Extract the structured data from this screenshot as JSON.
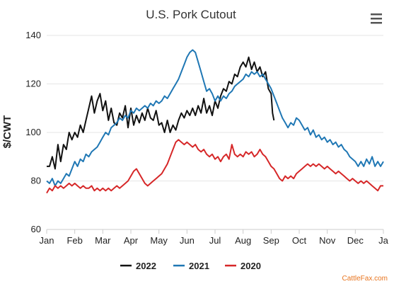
{
  "chart_data": {
    "type": "line",
    "title": "U.S. Pork Cutout",
    "xlabel": "",
    "ylabel": "$/CWT",
    "ylim": [
      60,
      140
    ],
    "yticks": [
      60,
      80,
      100,
      120,
      140
    ],
    "xticks": [
      "Jan",
      "Feb",
      "Mar",
      "Apr",
      "May",
      "Jun",
      "Jul",
      "Aug",
      "Sep",
      "Oct",
      "Nov",
      "Dec",
      "Ja"
    ],
    "x_unit": "month (0 = Jan 1, 12 = next Jan 1)",
    "grid": "horizontal",
    "legend_position": "bottom",
    "credits": "CattleFax.com",
    "series": [
      {
        "name": "2022",
        "color": "#111111",
        "points": [
          [
            0.0,
            86
          ],
          [
            0.1,
            86
          ],
          [
            0.2,
            90
          ],
          [
            0.3,
            85
          ],
          [
            0.4,
            95
          ],
          [
            0.5,
            88
          ],
          [
            0.6,
            95
          ],
          [
            0.7,
            93
          ],
          [
            0.8,
            100
          ],
          [
            0.9,
            97
          ],
          [
            1.0,
            100
          ],
          [
            1.1,
            98
          ],
          [
            1.2,
            103
          ],
          [
            1.3,
            100
          ],
          [
            1.4,
            105
          ],
          [
            1.5,
            110
          ],
          [
            1.6,
            115
          ],
          [
            1.7,
            108
          ],
          [
            1.8,
            113
          ],
          [
            1.9,
            116
          ],
          [
            2.0,
            109
          ],
          [
            2.1,
            113
          ],
          [
            2.2,
            105
          ],
          [
            2.3,
            110
          ],
          [
            2.4,
            104
          ],
          [
            2.5,
            103
          ],
          [
            2.6,
            108
          ],
          [
            2.7,
            106
          ],
          [
            2.8,
            111
          ],
          [
            2.9,
            102
          ],
          [
            3.0,
            110
          ],
          [
            3.1,
            103
          ],
          [
            3.2,
            107
          ],
          [
            3.3,
            104
          ],
          [
            3.4,
            108
          ],
          [
            3.5,
            105
          ],
          [
            3.6,
            110
          ],
          [
            3.7,
            106
          ],
          [
            3.8,
            105
          ],
          [
            3.9,
            109
          ],
          [
            4.0,
            103
          ],
          [
            4.1,
            104
          ],
          [
            4.2,
            100
          ],
          [
            4.3,
            105
          ],
          [
            4.4,
            100
          ],
          [
            4.5,
            103
          ],
          [
            4.6,
            101
          ],
          [
            4.7,
            105
          ],
          [
            4.8,
            108
          ],
          [
            4.9,
            106
          ],
          [
            5.0,
            109
          ],
          [
            5.1,
            107
          ],
          [
            5.2,
            110
          ],
          [
            5.3,
            107
          ],
          [
            5.4,
            111
          ],
          [
            5.5,
            108
          ],
          [
            5.6,
            114
          ],
          [
            5.7,
            108
          ],
          [
            5.8,
            111
          ],
          [
            5.9,
            107
          ],
          [
            6.0,
            113
          ],
          [
            6.1,
            110
          ],
          [
            6.2,
            115
          ],
          [
            6.3,
            118
          ],
          [
            6.4,
            117
          ],
          [
            6.5,
            121
          ],
          [
            6.6,
            120
          ],
          [
            6.7,
            124
          ],
          [
            6.8,
            123
          ],
          [
            6.9,
            127
          ],
          [
            7.0,
            129
          ],
          [
            7.1,
            127
          ],
          [
            7.2,
            131
          ],
          [
            7.3,
            126
          ],
          [
            7.4,
            129
          ],
          [
            7.5,
            125
          ],
          [
            7.6,
            127
          ],
          [
            7.7,
            123
          ],
          [
            7.8,
            125
          ],
          [
            7.9,
            118
          ],
          [
            8.0,
            116
          ],
          [
            8.05,
            108
          ],
          [
            8.1,
            105
          ]
        ]
      },
      {
        "name": "2021",
        "color": "#1f77b4",
        "points": [
          [
            0.0,
            80
          ],
          [
            0.1,
            79
          ],
          [
            0.2,
            81
          ],
          [
            0.3,
            78
          ],
          [
            0.4,
            80
          ],
          [
            0.5,
            79
          ],
          [
            0.6,
            81
          ],
          [
            0.7,
            83
          ],
          [
            0.8,
            82
          ],
          [
            0.9,
            85
          ],
          [
            1.0,
            88
          ],
          [
            1.1,
            86
          ],
          [
            1.2,
            89
          ],
          [
            1.3,
            88
          ],
          [
            1.4,
            91
          ],
          [
            1.5,
            90
          ],
          [
            1.6,
            92
          ],
          [
            1.7,
            93
          ],
          [
            1.8,
            94
          ],
          [
            1.9,
            96
          ],
          [
            2.0,
            98
          ],
          [
            2.1,
            100
          ],
          [
            2.2,
            99
          ],
          [
            2.3,
            102
          ],
          [
            2.4,
            103
          ],
          [
            2.5,
            104
          ],
          [
            2.6,
            106
          ],
          [
            2.7,
            105
          ],
          [
            2.8,
            107
          ],
          [
            2.9,
            106
          ],
          [
            3.0,
            109
          ],
          [
            3.1,
            108
          ],
          [
            3.2,
            110
          ],
          [
            3.3,
            109
          ],
          [
            3.4,
            110
          ],
          [
            3.5,
            111
          ],
          [
            3.6,
            110
          ],
          [
            3.7,
            112
          ],
          [
            3.8,
            111
          ],
          [
            3.9,
            113
          ],
          [
            4.0,
            112
          ],
          [
            4.1,
            113
          ],
          [
            4.2,
            115
          ],
          [
            4.3,
            114
          ],
          [
            4.4,
            116
          ],
          [
            4.5,
            118
          ],
          [
            4.6,
            120
          ],
          [
            4.7,
            122
          ],
          [
            4.8,
            125
          ],
          [
            4.9,
            128
          ],
          [
            5.0,
            131
          ],
          [
            5.1,
            133
          ],
          [
            5.2,
            134
          ],
          [
            5.3,
            133
          ],
          [
            5.4,
            129
          ],
          [
            5.5,
            125
          ],
          [
            5.6,
            121
          ],
          [
            5.7,
            117
          ],
          [
            5.8,
            118
          ],
          [
            5.9,
            116
          ],
          [
            6.0,
            113
          ],
          [
            6.1,
            115
          ],
          [
            6.2,
            113
          ],
          [
            6.3,
            115
          ],
          [
            6.4,
            114
          ],
          [
            6.5,
            116
          ],
          [
            6.6,
            117
          ],
          [
            6.7,
            119
          ],
          [
            6.8,
            120
          ],
          [
            6.9,
            121
          ],
          [
            7.0,
            122
          ],
          [
            7.1,
            124
          ],
          [
            7.2,
            123
          ],
          [
            7.3,
            125
          ],
          [
            7.4,
            124
          ],
          [
            7.5,
            125
          ],
          [
            7.6,
            123
          ],
          [
            7.7,
            124
          ],
          [
            7.8,
            122
          ],
          [
            7.9,
            120
          ],
          [
            8.0,
            118
          ],
          [
            8.1,
            115
          ],
          [
            8.2,
            112
          ],
          [
            8.3,
            109
          ],
          [
            8.4,
            106
          ],
          [
            8.5,
            104
          ],
          [
            8.6,
            102
          ],
          [
            8.7,
            104
          ],
          [
            8.8,
            103
          ],
          [
            8.9,
            106
          ],
          [
            9.0,
            105
          ],
          [
            9.1,
            103
          ],
          [
            9.2,
            101
          ],
          [
            9.3,
            102
          ],
          [
            9.4,
            99
          ],
          [
            9.5,
            101
          ],
          [
            9.6,
            98
          ],
          [
            9.7,
            99
          ],
          [
            9.8,
            97
          ],
          [
            9.9,
            98
          ],
          [
            10.0,
            96
          ],
          [
            10.1,
            97
          ],
          [
            10.2,
            95
          ],
          [
            10.3,
            96
          ],
          [
            10.4,
            94
          ],
          [
            10.5,
            95
          ],
          [
            10.6,
            93
          ],
          [
            10.7,
            92
          ],
          [
            10.8,
            90
          ],
          [
            10.9,
            89
          ],
          [
            11.0,
            88
          ],
          [
            11.1,
            86
          ],
          [
            11.2,
            88
          ],
          [
            11.3,
            86
          ],
          [
            11.4,
            89
          ],
          [
            11.5,
            87
          ],
          [
            11.6,
            90
          ],
          [
            11.7,
            86
          ],
          [
            11.8,
            88
          ],
          [
            11.9,
            86
          ],
          [
            12.0,
            88
          ]
        ]
      },
      {
        "name": "2020",
        "color": "#d62728",
        "points": [
          [
            0.0,
            75
          ],
          [
            0.1,
            77
          ],
          [
            0.2,
            76
          ],
          [
            0.3,
            78
          ],
          [
            0.4,
            77
          ],
          [
            0.5,
            78
          ],
          [
            0.6,
            77
          ],
          [
            0.7,
            78
          ],
          [
            0.8,
            79
          ],
          [
            0.9,
            78
          ],
          [
            1.0,
            79
          ],
          [
            1.1,
            78
          ],
          [
            1.2,
            77
          ],
          [
            1.3,
            78
          ],
          [
            1.4,
            77
          ],
          [
            1.5,
            77
          ],
          [
            1.6,
            78
          ],
          [
            1.7,
            76
          ],
          [
            1.8,
            77
          ],
          [
            1.9,
            76
          ],
          [
            2.0,
            77
          ],
          [
            2.1,
            76
          ],
          [
            2.2,
            77
          ],
          [
            2.3,
            76
          ],
          [
            2.4,
            77
          ],
          [
            2.5,
            78
          ],
          [
            2.6,
            77
          ],
          [
            2.7,
            78
          ],
          [
            2.8,
            79
          ],
          [
            2.9,
            80
          ],
          [
            3.0,
            82
          ],
          [
            3.1,
            84
          ],
          [
            3.2,
            85
          ],
          [
            3.3,
            83
          ],
          [
            3.4,
            81
          ],
          [
            3.5,
            79
          ],
          [
            3.6,
            78
          ],
          [
            3.7,
            79
          ],
          [
            3.8,
            80
          ],
          [
            3.9,
            81
          ],
          [
            4.0,
            82
          ],
          [
            4.1,
            83
          ],
          [
            4.2,
            85
          ],
          [
            4.3,
            87
          ],
          [
            4.4,
            90
          ],
          [
            4.5,
            93
          ],
          [
            4.6,
            96
          ],
          [
            4.7,
            97
          ],
          [
            4.8,
            96
          ],
          [
            4.9,
            95
          ],
          [
            5.0,
            96
          ],
          [
            5.1,
            95
          ],
          [
            5.2,
            94
          ],
          [
            5.3,
            95
          ],
          [
            5.4,
            93
          ],
          [
            5.5,
            92
          ],
          [
            5.6,
            93
          ],
          [
            5.7,
            91
          ],
          [
            5.8,
            90
          ],
          [
            5.9,
            91
          ],
          [
            6.0,
            89
          ],
          [
            6.1,
            90
          ],
          [
            6.2,
            88
          ],
          [
            6.3,
            90
          ],
          [
            6.4,
            91
          ],
          [
            6.5,
            89
          ],
          [
            6.6,
            95
          ],
          [
            6.7,
            91
          ],
          [
            6.8,
            90
          ],
          [
            6.9,
            91
          ],
          [
            7.0,
            90
          ],
          [
            7.1,
            92
          ],
          [
            7.2,
            91
          ],
          [
            7.3,
            92
          ],
          [
            7.4,
            90
          ],
          [
            7.5,
            91
          ],
          [
            7.6,
            93
          ],
          [
            7.7,
            91
          ],
          [
            7.8,
            90
          ],
          [
            7.9,
            88
          ],
          [
            8.0,
            86
          ],
          [
            8.1,
            85
          ],
          [
            8.2,
            83
          ],
          [
            8.3,
            81
          ],
          [
            8.4,
            80
          ],
          [
            8.5,
            82
          ],
          [
            8.6,
            81
          ],
          [
            8.7,
            82
          ],
          [
            8.8,
            81
          ],
          [
            8.9,
            83
          ],
          [
            9.0,
            84
          ],
          [
            9.1,
            85
          ],
          [
            9.2,
            86
          ],
          [
            9.3,
            87
          ],
          [
            9.4,
            86
          ],
          [
            9.5,
            87
          ],
          [
            9.6,
            86
          ],
          [
            9.7,
            87
          ],
          [
            9.8,
            86
          ],
          [
            9.9,
            85
          ],
          [
            10.0,
            86
          ],
          [
            10.1,
            85
          ],
          [
            10.2,
            84
          ],
          [
            10.3,
            83
          ],
          [
            10.4,
            84
          ],
          [
            10.5,
            83
          ],
          [
            10.6,
            82
          ],
          [
            10.7,
            81
          ],
          [
            10.8,
            80
          ],
          [
            10.9,
            81
          ],
          [
            11.0,
            80
          ],
          [
            11.1,
            79
          ],
          [
            11.2,
            80
          ],
          [
            11.3,
            79
          ],
          [
            11.4,
            80
          ],
          [
            11.5,
            79
          ],
          [
            11.6,
            78
          ],
          [
            11.7,
            77
          ],
          [
            11.8,
            76
          ],
          [
            11.9,
            78
          ],
          [
            12.0,
            78
          ]
        ]
      }
    ]
  }
}
